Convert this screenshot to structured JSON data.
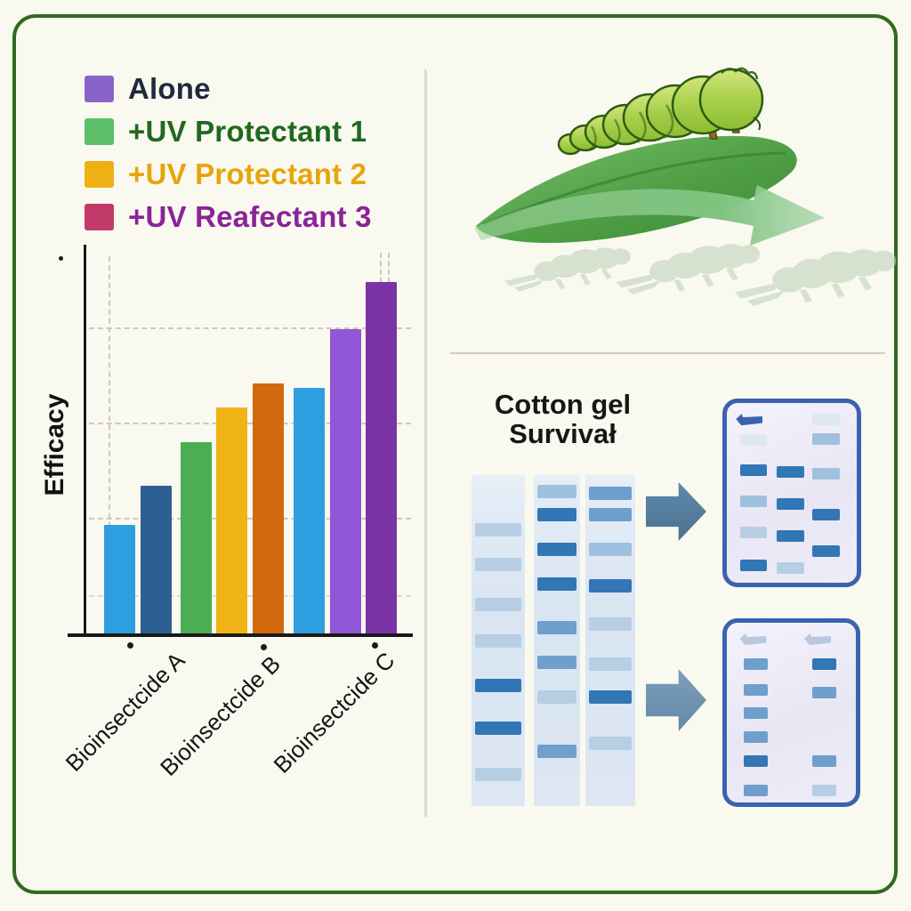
{
  "figure": {
    "border_color": "#2f6b1c",
    "background_color": "#faf9f0"
  },
  "chart_data": {
    "type": "bar",
    "title": "",
    "xlabel": "",
    "ylabel": "Efficacy",
    "ylim": [
      0,
      100
    ],
    "grid": "dashed",
    "legend_position": "top-left",
    "legend": [
      {
        "label": "Alone",
        "swatch_color": "#8a63c9",
        "text_color": "#1f2a3d"
      },
      {
        "label": "+UV Protectant 1",
        "swatch_color": "#5cbe66",
        "text_color": "#20691f"
      },
      {
        "label": "+UV Protectant 2",
        "swatch_color": "#eeb012",
        "text_color": "#e7a50a"
      },
      {
        "label": "+UV Reafectant 3",
        "swatch_color": "#c23a68",
        "text_color": "#8b2399"
      }
    ],
    "categories": [
      "Bioinsectcide A",
      "Bioinsectcide B",
      "Bioinsectcide C"
    ],
    "bars": [
      {
        "category": "Bioinsectcide A",
        "value": 28,
        "color": "#2d9fe0"
      },
      {
        "category": "Bioinsectcide A",
        "value": 38,
        "color": "#2c6094"
      },
      {
        "category": "Bioinsectcide B",
        "value": 49,
        "color": "#4cae52"
      },
      {
        "category": "Bioinsectcide B",
        "value": 58,
        "color": "#f0b416"
      },
      {
        "category": "Bioinsectcide B",
        "value": 64,
        "color": "#d2690d"
      },
      {
        "category": "Bioinsectcide C",
        "value": 63,
        "color": "#2d9fe0"
      },
      {
        "category": "Bioinsectcide C",
        "value": 78,
        "color": "#9257d6"
      },
      {
        "category": "Bioinsectcide C",
        "value": 90,
        "color": "#7b33a5"
      }
    ]
  },
  "illustration": {
    "name": "caterpillar-on-leaf-with-fading-larvae",
    "colors": {
      "leaf_dark": "#3f8c38",
      "leaf_light": "#7cc26f",
      "caterpillar_light": "#d2e67e",
      "caterpillar_dark": "#8cbd34",
      "outline": "#2d5c12",
      "arrow_green": "#8cc98c",
      "ghost_green": "#bfd4ba"
    }
  },
  "gel_section": {
    "title_line1": "Cotton gel",
    "title_line2": "Survivał",
    "band_colors": {
      "faint": "#dde8f3",
      "light": "#b7cee5",
      "mlight": "#9fc0de",
      "medium": "#6f9fcc",
      "dark": "#3376b5"
    },
    "arrow_colors": [
      "#557e9f",
      "#6c93b2"
    ],
    "plate_border_color": "#3a63ae",
    "lanes": [
      {
        "bands": [
          [
            0.145,
            "light"
          ],
          [
            0.25,
            "light"
          ],
          [
            0.37,
            "light"
          ],
          [
            0.48,
            "light"
          ],
          [
            0.615,
            "dark"
          ],
          [
            0.745,
            "dark"
          ],
          [
            0.885,
            "light"
          ]
        ]
      },
      {
        "bands": [
          [
            0.03,
            "mlight"
          ],
          [
            0.1,
            "dark"
          ],
          [
            0.205,
            "dark"
          ],
          [
            0.31,
            "dark"
          ],
          [
            0.44,
            "medium"
          ],
          [
            0.545,
            "medium"
          ],
          [
            0.65,
            "light"
          ],
          [
            0.815,
            "medium"
          ]
        ]
      },
      {
        "bands": [
          [
            0.035,
            "medium"
          ],
          [
            0.1,
            "medium"
          ],
          [
            0.205,
            "mlight"
          ],
          [
            0.315,
            "dark"
          ],
          [
            0.43,
            "light"
          ],
          [
            0.55,
            "light"
          ],
          [
            0.65,
            "dark"
          ],
          [
            0.79,
            "light"
          ]
        ]
      }
    ],
    "plates": [
      {
        "columns": [
          0.1,
          0.385,
          0.66
        ],
        "col_width": 0.21,
        "bands": [
          [
            2,
            0.055,
            "faint"
          ],
          [
            0,
            0.165,
            "faint"
          ],
          [
            2,
            0.16,
            "mlight"
          ],
          [
            0,
            0.325,
            "dark"
          ],
          [
            1,
            0.335,
            "dark"
          ],
          [
            2,
            0.345,
            "mlight"
          ],
          [
            0,
            0.49,
            "mlight"
          ],
          [
            1,
            0.505,
            "dark"
          ],
          [
            2,
            0.56,
            "dark"
          ],
          [
            0,
            0.655,
            "light"
          ],
          [
            1,
            0.675,
            "dark"
          ],
          [
            2,
            0.755,
            "dark"
          ],
          [
            0,
            0.83,
            "dark"
          ],
          [
            1,
            0.845,
            "light"
          ]
        ]
      },
      {
        "columns": [
          0.13,
          0.66
        ],
        "col_width": 0.19,
        "bands": [
          [
            0,
            0.19,
            "medium"
          ],
          [
            1,
            0.19,
            "dark"
          ],
          [
            0,
            0.325,
            "medium"
          ],
          [
            1,
            0.34,
            "medium"
          ],
          [
            0,
            0.45,
            "medium"
          ],
          [
            0,
            0.575,
            "medium"
          ],
          [
            0,
            0.705,
            "dark"
          ],
          [
            1,
            0.705,
            "medium"
          ],
          [
            0,
            0.86,
            "medium"
          ],
          [
            1,
            0.86,
            "light"
          ]
        ]
      }
    ]
  }
}
